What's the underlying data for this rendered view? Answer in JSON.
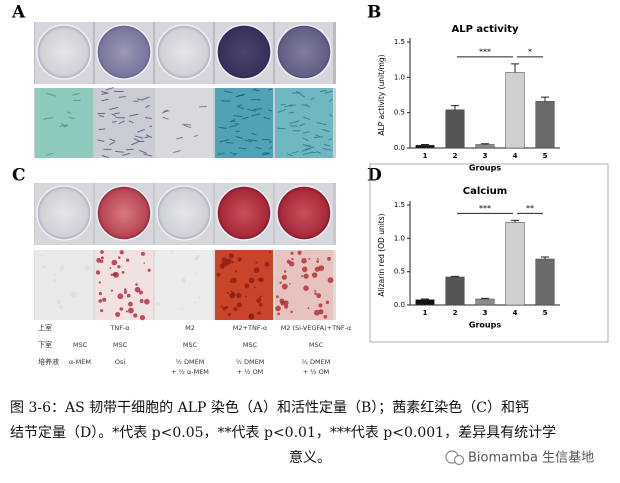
{
  "panels": [
    "A",
    "B",
    "C",
    "D"
  ],
  "chart_data": [
    {
      "type": "bar",
      "title": "ALP activity",
      "y_label": "ALP activity (unit/mg)",
      "x_label": "Groups",
      "categories": [
        "1",
        "2",
        "3",
        "4",
        "5"
      ],
      "values": [
        0.04,
        0.54,
        0.05,
        1.07,
        0.66
      ],
      "errors": [
        0.01,
        0.06,
        0.01,
        0.12,
        0.06
      ],
      "colors": [
        "#111111",
        "#555555",
        "#8a8a8a",
        "#d0d0d0",
        "#6a6a6a"
      ],
      "ylim": [
        0,
        1.5
      ],
      "yticks": [
        {
          "value": 0,
          "label": "0.0"
        },
        {
          "value": 0.5,
          "label": "0.5"
        },
        {
          "value": 1,
          "label": "1.0"
        },
        {
          "value": 1.5,
          "label": "1.5"
        }
      ],
      "annotations": [
        {
          "label": "***",
          "groups": [
            "2",
            "4"
          ]
        },
        {
          "label": "*",
          "groups": [
            "4",
            "5"
          ]
        }
      ]
    },
    {
      "type": "bar",
      "title": "Calcium",
      "y_label": "Alizarin red (OD units)",
      "x_label": "Groups",
      "categories": [
        "1",
        "2",
        "3",
        "4",
        "5"
      ],
      "values": [
        0.08,
        0.42,
        0.09,
        1.24,
        0.69
      ],
      "errors": [
        0.01,
        0.01,
        0.01,
        0.03,
        0.03
      ],
      "colors": [
        "#111111",
        "#555555",
        "#8a8a8a",
        "#d0d0d0",
        "#6a6a6a"
      ],
      "ylim": [
        0,
        1.5
      ],
      "yticks": [
        {
          "value": 0,
          "label": "0.0"
        },
        {
          "value": 0.5,
          "label": "0.5"
        },
        {
          "value": 1,
          "label": "1.0"
        },
        {
          "value": 1.5,
          "label": "1.5"
        }
      ],
      "annotations": [
        {
          "label": "***",
          "groups": [
            "2",
            "4"
          ]
        },
        {
          "label": "**",
          "groups": [
            "4",
            "5"
          ]
        }
      ]
    }
  ],
  "table": {
    "rows": [
      {
        "label": "上室",
        "cells": [
          null,
          [
            "TNF-α"
          ],
          [
            "M2"
          ],
          [
            "M2+TNF-α"
          ],
          [
            "M2 (Si-VEGFA)+TNF-α"
          ]
        ]
      },
      {
        "label": "下室",
        "cells": [
          [
            "MSC"
          ],
          [
            "MSC"
          ],
          [
            "MSC"
          ],
          [
            "MSC"
          ],
          [
            "MSC"
          ]
        ]
      },
      {
        "label": "培养液",
        "cells": [
          [
            "α-MEM"
          ],
          [
            "Osi"
          ],
          [
            "½ DMEM",
            "+ ½ α-MEM"
          ],
          [
            "½ DMEM",
            "+ ½ OM"
          ],
          [
            "½ DMEM",
            "+ ½ OM"
          ]
        ]
      }
    ]
  },
  "caption": [
    "图 3-6：AS 韧带干细胞的 ALP 染色（A）和活性定量（B）；茜素红染色（C）和钙",
    "结节定量（D）。*代表 p<0.05，**代表 p<0.01，***代表 p<0.001，差异具有统计学",
    "意义。"
  ],
  "watermark": "Biomamba 生信基地"
}
